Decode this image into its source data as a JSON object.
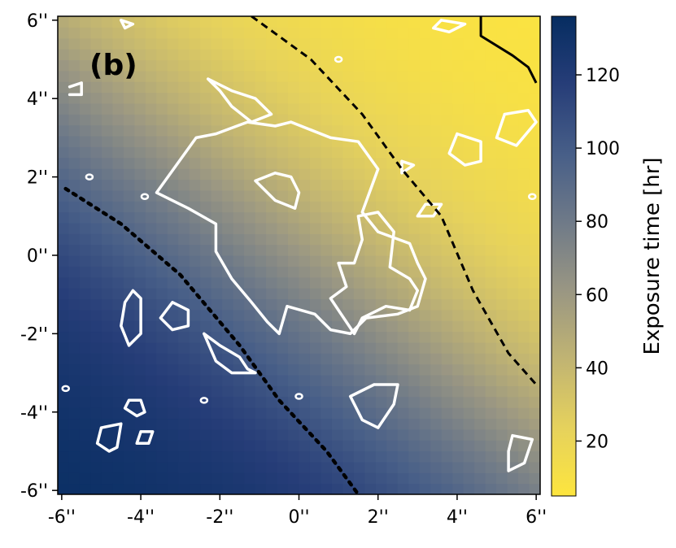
{
  "chart_data": {
    "type": "heatmap",
    "panel_label": "(b)",
    "x_ticks": [
      {
        "value": -6,
        "label": "-6''"
      },
      {
        "value": -4,
        "label": "-4''"
      },
      {
        "value": -2,
        "label": "-2''"
      },
      {
        "value": 0,
        "label": "0''"
      },
      {
        "value": 2,
        "label": "2''"
      },
      {
        "value": 4,
        "label": "4''"
      },
      {
        "value": 6,
        "label": "6''"
      }
    ],
    "y_ticks": [
      {
        "value": 6,
        "label": "6''"
      },
      {
        "value": 4,
        "label": "4''"
      },
      {
        "value": 2,
        "label": "2''"
      },
      {
        "value": 0,
        "label": "0''"
      },
      {
        "value": -2,
        "label": "-2''"
      },
      {
        "value": -4,
        "label": "-4''"
      },
      {
        "value": -6,
        "label": "-6''"
      }
    ],
    "xlim": [
      -6.1,
      6.1
    ],
    "ylim": [
      -6.1,
      6.1
    ],
    "colorbar": {
      "label": "Exposure time [hr]",
      "ticks": [
        20,
        40,
        60,
        80,
        100,
        120
      ],
      "range": [
        5,
        136
      ],
      "colors": [
        "#fde53e",
        "#e6d25c",
        "#c2b572",
        "#999683",
        "#6f7a88",
        "#485f88",
        "#263d78",
        "#062d61"
      ]
    },
    "exposure_model": {
      "direction": [
        -0.62,
        -0.78
      ],
      "min_hours": 5,
      "max_hours": 136,
      "description_level_at_center": 52
    },
    "level_lines": [
      {
        "style": "dotted",
        "points": [
          [
            -5.9,
            1.7
          ],
          [
            -4.5,
            0.8
          ],
          [
            -3.0,
            -0.5
          ],
          [
            -1.5,
            -2.3
          ],
          [
            -0.5,
            -3.7
          ],
          [
            0.7,
            -5.0
          ],
          [
            1.5,
            -6.1
          ]
        ]
      },
      {
        "style": "dashed",
        "points": [
          [
            -1.2,
            6.1
          ],
          [
            0.3,
            5.0
          ],
          [
            1.6,
            3.6
          ],
          [
            2.6,
            2.2
          ],
          [
            3.6,
            1.0
          ],
          [
            4.4,
            -0.9
          ],
          [
            5.3,
            -2.5
          ],
          [
            6.0,
            -3.3
          ]
        ]
      },
      {
        "style": "solid",
        "points": [
          [
            4.6,
            6.1
          ],
          [
            4.6,
            5.6
          ],
          [
            5.4,
            5.1
          ],
          [
            5.8,
            4.8
          ],
          [
            6.0,
            4.4
          ]
        ]
      }
    ],
    "white_contours": [
      [
        [
          -0.2,
          3.4
        ],
        [
          0.8,
          3.0
        ],
        [
          1.5,
          2.9
        ],
        [
          2.0,
          2.2
        ],
        [
          1.6,
          1.1
        ],
        [
          2.0,
          0.6
        ],
        [
          2.8,
          0.3
        ],
        [
          3.0,
          -0.2
        ],
        [
          3.2,
          -0.6
        ],
        [
          3.0,
          -1.3
        ],
        [
          2.5,
          -1.5
        ],
        [
          1.7,
          -1.6
        ],
        [
          1.3,
          -2.0
        ],
        [
          0.8,
          -1.9
        ],
        [
          0.4,
          -1.5
        ],
        [
          -0.3,
          -1.3
        ],
        [
          -0.5,
          -2.0
        ],
        [
          -0.8,
          -1.7
        ],
        [
          -1.2,
          -1.2
        ],
        [
          -1.7,
          -0.6
        ],
        [
          -2.1,
          0.1
        ],
        [
          -2.1,
          0.8
        ],
        [
          -2.8,
          1.2
        ],
        [
          -3.6,
          1.6
        ],
        [
          -3.1,
          2.3
        ],
        [
          -2.6,
          3.0
        ],
        [
          -2.1,
          3.1
        ],
        [
          -1.3,
          3.4
        ],
        [
          -0.6,
          3.3
        ],
        [
          -0.2,
          3.4
        ]
      ],
      [
        [
          -1.1,
          1.9
        ],
        [
          -0.6,
          1.4
        ],
        [
          -0.1,
          1.2
        ],
        [
          0.0,
          1.6
        ],
        [
          -0.2,
          2.0
        ],
        [
          -0.6,
          2.1
        ],
        [
          -1.1,
          1.9
        ]
      ],
      [
        [
          1.0,
          -0.2
        ],
        [
          1.4,
          -0.2
        ],
        [
          1.6,
          0.4
        ],
        [
          1.5,
          1.0
        ],
        [
          2.0,
          1.1
        ],
        [
          2.4,
          0.6
        ],
        [
          2.3,
          -0.3
        ],
        [
          2.8,
          -0.6
        ],
        [
          3.0,
          -0.9
        ],
        [
          2.8,
          -1.4
        ],
        [
          2.2,
          -1.3
        ],
        [
          1.6,
          -1.6
        ],
        [
          1.4,
          -2.0
        ],
        [
          1.0,
          -1.4
        ],
        [
          0.8,
          -1.1
        ],
        [
          1.2,
          -0.8
        ],
        [
          1.0,
          -0.2
        ]
      ],
      [
        [
          -4.2,
          -0.9
        ],
        [
          -4.0,
          -1.1
        ],
        [
          -4.0,
          -2.0
        ],
        [
          -4.3,
          -2.3
        ],
        [
          -4.5,
          -1.8
        ],
        [
          -4.4,
          -1.2
        ],
        [
          -4.2,
          -0.9
        ]
      ],
      [
        [
          -3.2,
          -1.2
        ],
        [
          -2.8,
          -1.4
        ],
        [
          -2.8,
          -1.8
        ],
        [
          -3.2,
          -1.9
        ],
        [
          -3.5,
          -1.6
        ],
        [
          -3.2,
          -1.2
        ]
      ],
      [
        [
          -2.4,
          -2.0
        ],
        [
          -2.0,
          -2.3
        ],
        [
          -1.5,
          -2.6
        ],
        [
          -1.3,
          -2.9
        ],
        [
          -1.1,
          -3.0
        ],
        [
          -1.7,
          -3.0
        ],
        [
          -2.1,
          -2.7
        ],
        [
          -2.4,
          -2.0
        ]
      ],
      [
        [
          -4.3,
          -3.7
        ],
        [
          -4.0,
          -3.7
        ],
        [
          -3.9,
          -4.0
        ],
        [
          -4.1,
          -4.1
        ],
        [
          -4.4,
          -3.9
        ],
        [
          -4.3,
          -3.7
        ]
      ],
      [
        [
          -5.0,
          -4.4
        ],
        [
          -4.5,
          -4.3
        ],
        [
          -4.6,
          -4.9
        ],
        [
          -4.8,
          -5.0
        ],
        [
          -5.1,
          -4.8
        ],
        [
          -5.0,
          -4.4
        ]
      ],
      [
        [
          -4.0,
          -4.5
        ],
        [
          -3.7,
          -4.5
        ],
        [
          -3.8,
          -4.8
        ],
        [
          -4.1,
          -4.8
        ],
        [
          -4.0,
          -4.5
        ]
      ],
      [
        [
          1.9,
          -3.3
        ],
        [
          2.5,
          -3.3
        ],
        [
          2.4,
          -3.8
        ],
        [
          2.0,
          -4.4
        ],
        [
          1.6,
          -4.2
        ],
        [
          1.3,
          -3.6
        ],
        [
          1.9,
          -3.3
        ]
      ],
      [
        [
          5.4,
          -4.6
        ],
        [
          5.9,
          -4.7
        ],
        [
          5.7,
          -5.3
        ],
        [
          5.3,
          -5.5
        ],
        [
          5.3,
          -5.0
        ],
        [
          5.4,
          -4.6
        ]
      ],
      [
        [
          -5.8,
          4.1
        ],
        [
          -5.5,
          4.1
        ],
        [
          -5.5,
          4.4
        ],
        [
          -5.8,
          4.3
        ]
      ],
      [
        [
          -2.3,
          4.5
        ],
        [
          -2.0,
          4.2
        ],
        [
          -1.7,
          3.8
        ],
        [
          -1.2,
          3.4
        ],
        [
          -0.7,
          3.6
        ],
        [
          -1.1,
          4.0
        ],
        [
          -1.7,
          4.2
        ],
        [
          -2.3,
          4.5
        ]
      ],
      [
        [
          4.0,
          3.1
        ],
        [
          4.6,
          2.9
        ],
        [
          4.6,
          2.4
        ],
        [
          4.2,
          2.3
        ],
        [
          3.8,
          2.6
        ],
        [
          4.0,
          3.1
        ]
      ],
      [
        [
          5.2,
          3.6
        ],
        [
          5.8,
          3.7
        ],
        [
          6.0,
          3.4
        ],
        [
          5.5,
          2.8
        ],
        [
          5.0,
          3.0
        ],
        [
          5.2,
          3.6
        ]
      ],
      [
        [
          3.6,
          1.3
        ],
        [
          3.4,
          1.0
        ],
        [
          3.0,
          1.0
        ],
        [
          3.2,
          1.3
        ],
        [
          3.6,
          1.3
        ]
      ],
      [
        [
          2.6,
          2.4
        ],
        [
          2.9,
          2.3
        ],
        [
          2.6,
          2.1
        ],
        [
          2.6,
          2.4
        ]
      ],
      [
        [
          3.6,
          6.0
        ],
        [
          4.2,
          5.9
        ],
        [
          3.8,
          5.7
        ],
        [
          3.4,
          5.8
        ],
        [
          3.6,
          6.0
        ]
      ],
      [
        [
          -4.5,
          6.0
        ],
        [
          -4.2,
          5.9
        ],
        [
          -4.4,
          5.8
        ],
        [
          -4.5,
          6.0
        ]
      ]
    ],
    "small_blobs": [
      [
        -5.9,
        -3.4
      ],
      [
        -5.3,
        2.0
      ],
      [
        -3.9,
        1.5
      ],
      [
        -2.4,
        -3.7
      ],
      [
        0.0,
        -3.6
      ],
      [
        1.0,
        5.0
      ],
      [
        5.9,
        1.5
      ]
    ],
    "grid": false
  }
}
